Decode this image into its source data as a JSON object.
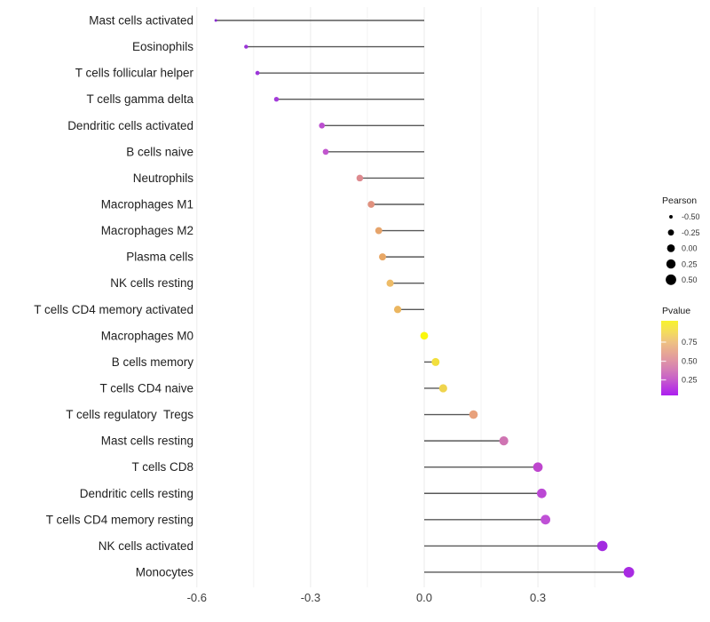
{
  "chart_data": {
    "type": "scatter",
    "variant": "lollipop",
    "title": "",
    "xlabel": "",
    "ylabel": "",
    "background_color": "#ffffff",
    "gridline_color": "#ebebeb",
    "stem_color": "#4a4a4a",
    "x_axis": {
      "range": [
        -0.72,
        0.62
      ],
      "major_ticks": [
        -0.6,
        -0.3,
        0.0,
        0.3
      ],
      "major_tick_labels": [
        "-0.6",
        "-0.3",
        "0.0",
        "0.3"
      ],
      "minor_ticks": [
        -0.45,
        -0.15,
        0.15,
        0.45
      ]
    },
    "points": [
      {
        "label": "Mast cells activated",
        "pearson": -0.55,
        "color": "#8a2bd1"
      },
      {
        "label": "Eosinophils",
        "pearson": -0.47,
        "color": "#9a33d8"
      },
      {
        "label": "T cells follicular helper",
        "pearson": -0.44,
        "color": "#9d36da"
      },
      {
        "label": "T cells gamma delta",
        "pearson": -0.39,
        "color": "#a43cda"
      },
      {
        "label": "Dendritic cells activated",
        "pearson": -0.27,
        "color": "#bc4fd0"
      },
      {
        "label": "B cells naive",
        "pearson": -0.26,
        "color": "#c156ce"
      },
      {
        "label": "Neutrophils",
        "pearson": -0.17,
        "color": "#dd8a8f"
      },
      {
        "label": "Macrophages M1",
        "pearson": -0.14,
        "color": "#e0917e"
      },
      {
        "label": "Macrophages M2",
        "pearson": -0.12,
        "color": "#e6a46b"
      },
      {
        "label": "Plasma cells",
        "pearson": -0.11,
        "color": "#e8a765"
      },
      {
        "label": "NK cells resting",
        "pearson": -0.09,
        "color": "#eebc68"
      },
      {
        "label": "T cells CD4 memory activated",
        "pearson": -0.07,
        "color": "#ebb660"
      },
      {
        "label": "Macrophages M0",
        "pearson": 0.0,
        "color": "#faf70d"
      },
      {
        "label": "B cells memory",
        "pearson": 0.03,
        "color": "#f2df3d"
      },
      {
        "label": "T cells CD4 naive",
        "pearson": 0.05,
        "color": "#efd44d"
      },
      {
        "label": "T cells regulatory  Tregs",
        "pearson": 0.13,
        "color": "#e8a17c"
      },
      {
        "label": "Mast cells resting",
        "pearson": 0.21,
        "color": "#cf74b2"
      },
      {
        "label": "T cells CD8",
        "pearson": 0.3,
        "color": "#be46ce"
      },
      {
        "label": "Dendritic cells resting",
        "pearson": 0.31,
        "color": "#bb48d4"
      },
      {
        "label": "T cells CD4 memory resting",
        "pearson": 0.32,
        "color": "#bf50d6"
      },
      {
        "label": "NK cells activated",
        "pearson": 0.47,
        "color": "#a32be0"
      },
      {
        "label": "Monocytes",
        "pearson": 0.54,
        "color": "#a82be2"
      }
    ],
    "legend_size": {
      "title": "Pearson",
      "entries": [
        {
          "value": -0.5,
          "label": "-0.50"
        },
        {
          "value": -0.25,
          "label": "-0.25"
        },
        {
          "value": 0.0,
          "label": "0.00"
        },
        {
          "value": 0.25,
          "label": "0.25"
        },
        {
          "value": 0.5,
          "label": "0.50"
        }
      ],
      "dot_color": "#000000"
    },
    "legend_color": {
      "title": "Pvalue",
      "tick_labels": [
        "0.75",
        "0.50",
        "0.25"
      ],
      "gradient_stops": [
        {
          "offset": 0.0,
          "color": "#ab1ff0"
        },
        {
          "offset": 0.12,
          "color": "#bc3fdc"
        },
        {
          "offset": 0.22,
          "color": "#c75fc9"
        },
        {
          "offset": 0.34,
          "color": "#d37cb7"
        },
        {
          "offset": 0.46,
          "color": "#df93a5"
        },
        {
          "offset": 0.58,
          "color": "#e7a893"
        },
        {
          "offset": 0.71,
          "color": "#eec083"
        },
        {
          "offset": 0.85,
          "color": "#f4dc5c"
        },
        {
          "offset": 1.0,
          "color": "#f8f32e"
        }
      ]
    }
  }
}
